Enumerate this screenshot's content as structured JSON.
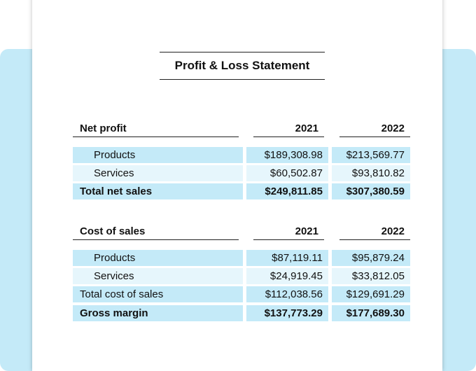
{
  "title": "Profit & Loss Statement",
  "tables": [
    {
      "header": [
        "Net profit",
        "2021",
        "2022"
      ],
      "rows": [
        [
          "Products",
          "$189,308.98",
          "$213,569.77"
        ],
        [
          "Services",
          "$60,502.87",
          "$93,810.82"
        ],
        [
          "Total net sales",
          "$249,811.85",
          "$307,380.59"
        ]
      ]
    },
    {
      "header": [
        "Cost of sales",
        "2021",
        "2022"
      ],
      "rows": [
        [
          "Products",
          "$87,119.11",
          "$95,879.24"
        ],
        [
          "Services",
          "$24,919.45",
          "$33,812.05"
        ],
        [
          "Total cost of sales",
          "$112,038.56",
          "$129,691.29"
        ],
        [
          "Gross margin",
          "$137,773.29",
          "$177,689.30"
        ]
      ]
    }
  ]
}
